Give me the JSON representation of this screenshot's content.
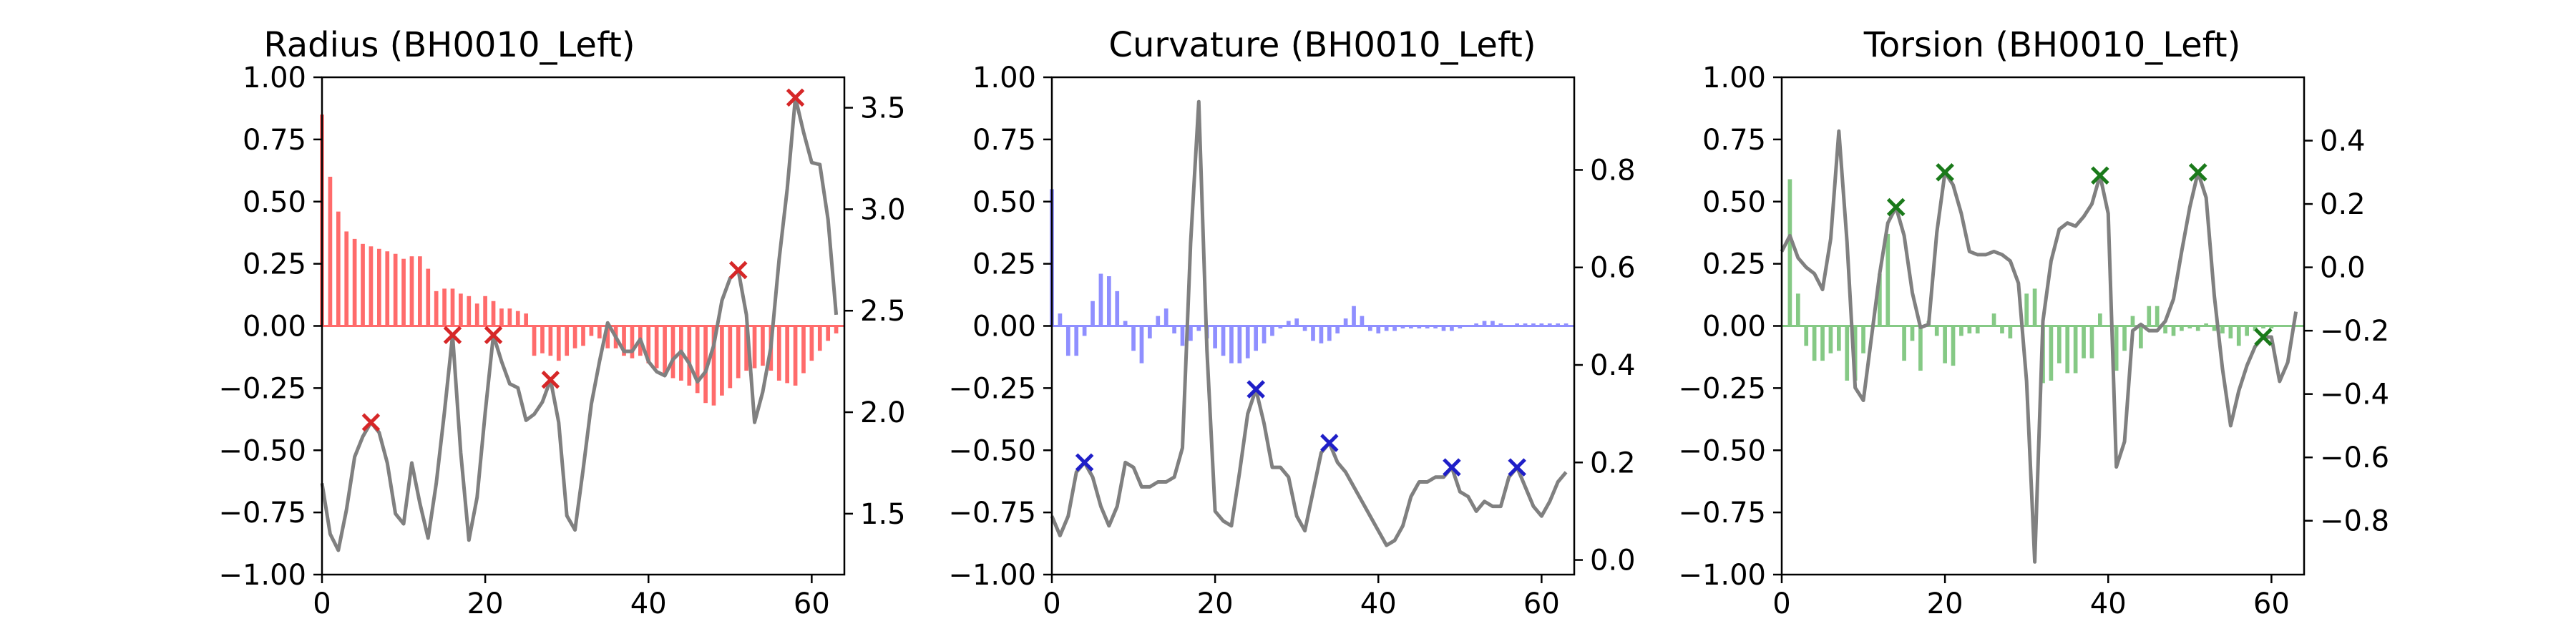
{
  "chart_data": [
    {
      "type": "bar",
      "title": "Radius (BH0010_Left)",
      "color_bars": "#ff6b6b",
      "color_marker": "#d62728",
      "xlim": [
        0,
        64
      ],
      "ylim": [
        -1.0,
        1.0
      ],
      "ylim_right": [
        1.2,
        3.65
      ],
      "x_ticks": [
        0,
        20,
        40,
        60
      ],
      "y_ticks": [
        -1.0,
        -0.75,
        -0.5,
        -0.25,
        0.0,
        0.25,
        0.5,
        0.75,
        1.0
      ],
      "y_ticks_right": [
        1.5,
        2.0,
        2.5,
        3.0,
        3.5
      ],
      "x_tick_labels": [
        "0",
        "20",
        "40",
        "60"
      ],
      "y_tick_labels": [
        "−1.00",
        "−0.75",
        "−0.50",
        "−0.25",
        "0.00",
        "0.25",
        "0.50",
        "0.75",
        "1.00"
      ],
      "y_tick_labels_right": [
        "1.5",
        "2.0",
        "2.5",
        "3.0",
        "3.5"
      ],
      "bars": [
        0.85,
        0.6,
        0.46,
        0.38,
        0.35,
        0.33,
        0.32,
        0.31,
        0.3,
        0.29,
        0.27,
        0.28,
        0.28,
        0.23,
        0.14,
        0.15,
        0.15,
        0.13,
        0.12,
        0.09,
        0.12,
        0.1,
        0.07,
        0.07,
        0.06,
        0.05,
        -0.12,
        -0.11,
        -0.12,
        -0.14,
        -0.12,
        -0.09,
        -0.08,
        -0.04,
        -0.05,
        -0.09,
        -0.09,
        -0.12,
        -0.13,
        -0.12,
        -0.15,
        -0.17,
        -0.19,
        -0.21,
        -0.22,
        -0.24,
        -0.27,
        -0.31,
        -0.32,
        -0.28,
        -0.25,
        -0.21,
        -0.18,
        -0.17,
        -0.16,
        -0.18,
        -0.22,
        -0.23,
        -0.24,
        -0.19,
        -0.14,
        -0.1,
        -0.06,
        -0.03
      ],
      "line": [
        1.65,
        1.4,
        1.32,
        1.52,
        1.78,
        1.88,
        1.95,
        1.9,
        1.75,
        1.5,
        1.45,
        1.75,
        1.55,
        1.38,
        1.65,
        2.0,
        2.38,
        1.8,
        1.37,
        1.58,
        2.0,
        2.38,
        2.25,
        2.14,
        2.12,
        1.96,
        1.99,
        2.05,
        2.16,
        1.95,
        1.49,
        1.42,
        1.72,
        2.04,
        2.25,
        2.44,
        2.37,
        2.3,
        2.3,
        2.36,
        2.25,
        2.2,
        2.18,
        2.26,
        2.3,
        2.24,
        2.15,
        2.2,
        2.33,
        2.55,
        2.66,
        2.7,
        2.48,
        1.95,
        2.1,
        2.32,
        2.75,
        3.1,
        3.55,
        3.38,
        3.23,
        3.22,
        2.95,
        2.48
      ],
      "markers": [
        6,
        16,
        21,
        28,
        51,
        58
      ]
    },
    {
      "type": "bar",
      "title": "Curvature (BH0010_Left)",
      "color_bars": "#8f8fff",
      "color_marker": "#1f1fc8",
      "xlim": [
        0,
        64
      ],
      "ylim": [
        -1.0,
        1.0
      ],
      "ylim_right": [
        -0.03,
        0.99
      ],
      "x_ticks": [
        0,
        20,
        40,
        60
      ],
      "y_ticks": [
        -1.0,
        -0.75,
        -0.5,
        -0.25,
        0.0,
        0.25,
        0.5,
        0.75,
        1.0
      ],
      "y_ticks_right": [
        0.0,
        0.2,
        0.4,
        0.6,
        0.8
      ],
      "x_tick_labels": [
        "0",
        "20",
        "40",
        "60"
      ],
      "y_tick_labels": [
        "−1.00",
        "−0.75",
        "−0.50",
        "−0.25",
        "0.00",
        "0.25",
        "0.50",
        "0.75",
        "1.00"
      ],
      "y_tick_labels_right": [
        "0.0",
        "0.2",
        "0.4",
        "0.6",
        "0.8"
      ],
      "bars": [
        0.55,
        0.05,
        -0.12,
        -0.12,
        -0.04,
        0.1,
        0.21,
        0.2,
        0.14,
        0.02,
        -0.1,
        -0.15,
        -0.05,
        0.04,
        0.07,
        -0.03,
        -0.08,
        -0.06,
        -0.02,
        -0.05,
        -0.09,
        -0.12,
        -0.15,
        -0.15,
        -0.13,
        -0.1,
        -0.07,
        -0.04,
        -0.01,
        0.02,
        0.03,
        -0.02,
        -0.06,
        -0.07,
        -0.06,
        -0.03,
        0.03,
        0.08,
        0.04,
        -0.02,
        -0.03,
        -0.02,
        -0.02,
        -0.01,
        -0.01,
        -0.01,
        -0.01,
        -0.01,
        -0.02,
        -0.02,
        -0.01,
        0.0,
        0.01,
        0.02,
        0.02,
        0.01,
        0.0,
        0.01,
        0.01,
        0.01,
        0.01,
        0.01,
        0.01,
        0.01
      ],
      "line": [
        0.09,
        0.05,
        0.09,
        0.18,
        0.2,
        0.17,
        0.11,
        0.07,
        0.11,
        0.2,
        0.19,
        0.15,
        0.15,
        0.16,
        0.16,
        0.17,
        0.23,
        0.65,
        0.94,
        0.43,
        0.1,
        0.08,
        0.07,
        0.18,
        0.3,
        0.35,
        0.28,
        0.19,
        0.19,
        0.17,
        0.09,
        0.06,
        0.14,
        0.22,
        0.24,
        0.2,
        0.18,
        0.15,
        0.12,
        0.09,
        0.06,
        0.03,
        0.04,
        0.07,
        0.13,
        0.16,
        0.16,
        0.17,
        0.17,
        0.19,
        0.14,
        0.13,
        0.1,
        0.12,
        0.11,
        0.11,
        0.17,
        0.19,
        0.15,
        0.11,
        0.09,
        0.12,
        0.16,
        0.18
      ],
      "markers": [
        4,
        25,
        34,
        49,
        57
      ]
    },
    {
      "type": "bar",
      "title": "Torsion (BH0010_Left)",
      "color_bars": "#85c985",
      "color_marker": "#1a7a1a",
      "xlim": [
        0,
        64
      ],
      "ylim": [
        -1.0,
        1.0
      ],
      "ylim_right": [
        -0.97,
        0.6
      ],
      "x_ticks": [
        0,
        20,
        40,
        60
      ],
      "y_ticks": [
        -1.0,
        -0.75,
        -0.5,
        -0.25,
        0.0,
        0.25,
        0.5,
        0.75,
        1.0
      ],
      "y_ticks_right": [
        -0.8,
        -0.6,
        -0.4,
        -0.2,
        0.0,
        0.2,
        0.4
      ],
      "x_tick_labels": [
        "0",
        "20",
        "40",
        "60"
      ],
      "y_tick_labels": [
        "−1.00",
        "−0.75",
        "−0.50",
        "−0.25",
        "0.00",
        "0.25",
        "0.50",
        "0.75",
        "1.00"
      ],
      "y_tick_labels_right": [
        "−0.8",
        "−0.6",
        "−0.4",
        "−0.2",
        "0.0",
        "0.2",
        "0.4"
      ],
      "bars": [
        0.0,
        0.59,
        0.13,
        -0.08,
        -0.14,
        -0.14,
        -0.11,
        -0.1,
        -0.22,
        -0.22,
        -0.11,
        0.0,
        0.21,
        0.37,
        0.0,
        -0.14,
        -0.06,
        -0.18,
        0.02,
        -0.04,
        -0.15,
        -0.16,
        -0.04,
        -0.03,
        -0.03,
        0.0,
        0.05,
        -0.03,
        -0.05,
        0.0,
        0.13,
        0.15,
        -0.23,
        -0.22,
        -0.15,
        -0.19,
        -0.19,
        -0.13,
        -0.13,
        0.05,
        0.0,
        -0.18,
        -0.1,
        0.04,
        -0.09,
        0.08,
        0.08,
        -0.03,
        -0.04,
        -0.02,
        -0.01,
        -0.02,
        0.01,
        -0.02,
        -0.03,
        -0.05,
        -0.08,
        -0.04,
        -0.02,
        -0.01,
        -0.01,
        0.0,
        0.0,
        0.0
      ],
      "line": [
        0.05,
        0.1,
        0.03,
        0.0,
        -0.02,
        -0.07,
        0.09,
        0.43,
        0.08,
        -0.38,
        -0.42,
        -0.22,
        -0.02,
        0.14,
        0.19,
        0.1,
        -0.08,
        -0.19,
        -0.18,
        0.11,
        0.3,
        0.26,
        0.17,
        0.05,
        0.04,
        0.04,
        0.05,
        0.04,
        0.02,
        -0.05,
        -0.36,
        -0.93,
        -0.17,
        0.02,
        0.12,
        0.14,
        0.13,
        0.16,
        0.2,
        0.29,
        0.17,
        -0.63,
        -0.55,
        -0.2,
        -0.18,
        -0.2,
        -0.2,
        -0.17,
        -0.1,
        0.05,
        0.19,
        0.3,
        0.22,
        -0.09,
        -0.32,
        -0.5,
        -0.39,
        -0.31,
        -0.25,
        -0.22,
        -0.22,
        -0.36,
        -0.3,
        -0.14
      ],
      "markers": [
        14,
        20,
        39,
        51,
        59
      ]
    }
  ]
}
